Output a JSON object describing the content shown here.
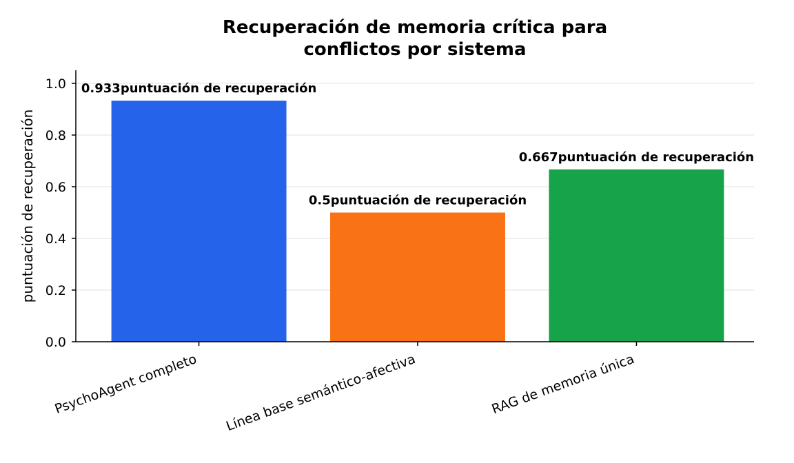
{
  "chart_data": {
    "type": "bar",
    "title_lines": [
      "Recuperación de memoria crítica para",
      "conflictos por sistema"
    ],
    "xlabel": "",
    "ylabel": "puntuación de recuperación",
    "ylim": [
      0,
      1.0
    ],
    "yticks": [
      0.0,
      0.2,
      0.4,
      0.6,
      0.8,
      1.0
    ],
    "ytick_labels": [
      "0.0",
      "0.2",
      "0.4",
      "0.6",
      "0.8",
      "1.0"
    ],
    "grid": "horizontal",
    "categories": [
      "PsychoAgent completo",
      "Línea base semántico-afectiva",
      "RAG de memoria única"
    ],
    "values": [
      0.933,
      0.5,
      0.667
    ],
    "colors": [
      "#2563eb",
      "#f97316",
      "#16a34a"
    ],
    "data_labels": [
      "0.933puntuación de recuperación",
      "0.5puntuación de recuperación",
      "0.667puntuación de recuperación"
    ]
  }
}
